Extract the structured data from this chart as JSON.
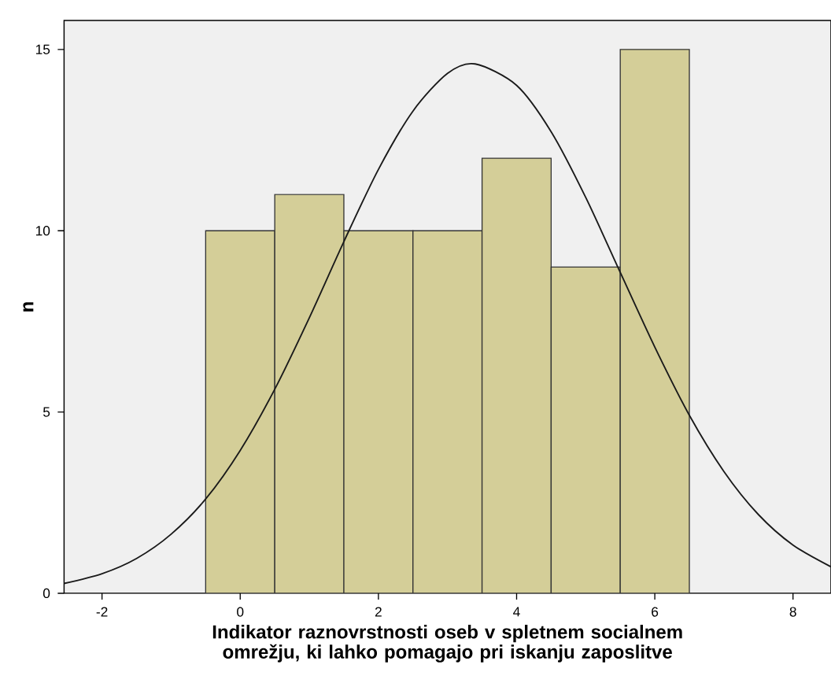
{
  "chart_data": {
    "type": "histogram",
    "xlabel": "Indikator raznovrstnosti oseb v spletnem socialnem omrežju, ki lahko pomagajo pri iskanju zaposlitve",
    "ylabel": "n",
    "bins": [
      -0.5,
      0.5,
      1.5,
      2.5,
      3.5,
      4.5,
      5.5,
      6.5
    ],
    "values": [
      10,
      11,
      10,
      10,
      12,
      9,
      15
    ],
    "color": "#d4ce98",
    "series": [
      {
        "type": "line",
        "color": "#1a1a1a",
        "x": [
          -2.55,
          -2,
          -1.5,
          -1,
          -0.5,
          0,
          0.5,
          1,
          1.5,
          2,
          2.5,
          3,
          3.4,
          4,
          4.5,
          5,
          5.5,
          6,
          6.5,
          7,
          7.5,
          8,
          8.55
        ],
        "values": [
          0.27,
          0.54,
          0.96,
          1.63,
          2.6,
          3.94,
          5.63,
          7.6,
          9.7,
          11.69,
          13.3,
          14.34,
          14.6,
          14.01,
          12.73,
          10.92,
          8.85,
          6.79,
          4.91,
          3.36,
          2.17,
          1.33,
          0.73
        ]
      }
    ],
    "xlim": [
      -2.55,
      8.55
    ],
    "ylim": [
      0,
      15.8
    ],
    "xticks": [
      -2,
      0,
      2,
      4,
      6,
      8
    ],
    "yticks": [
      0,
      5,
      10,
      15
    ],
    "grid": false,
    "marker": "none",
    "line_style": "solid"
  }
}
